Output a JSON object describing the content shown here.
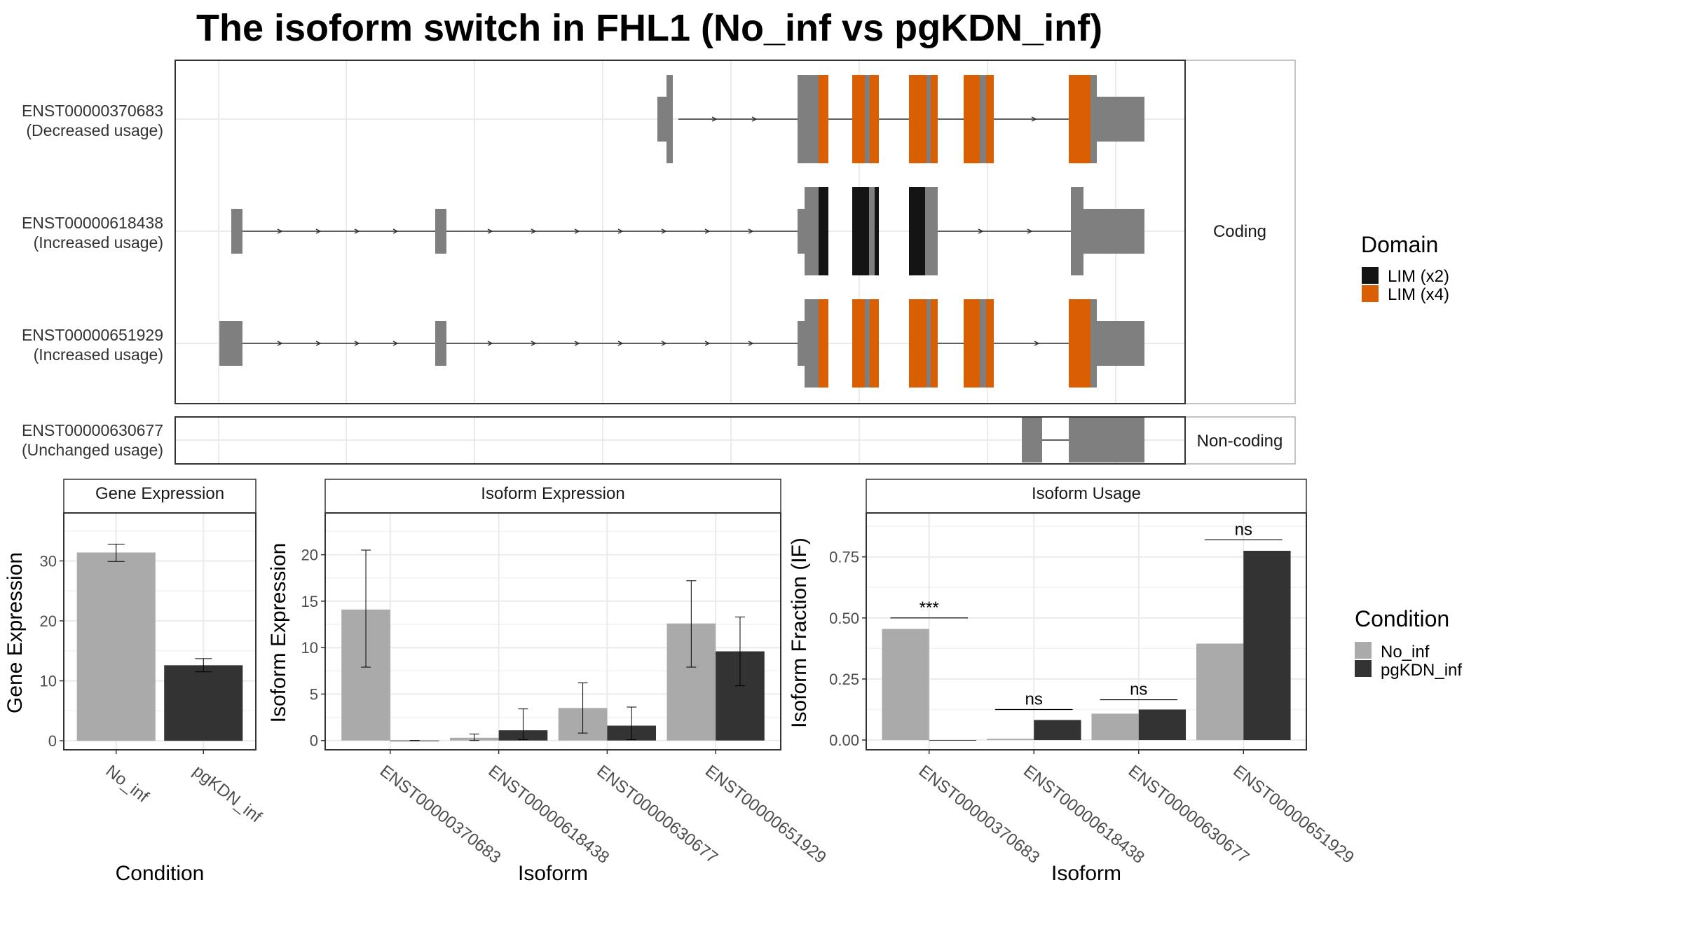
{
  "title": "The isoform switch in FHL1 (No_inf vs pgKDN_inf)",
  "colors": {
    "exon_gray": "#7f7f7f",
    "lim_x2": "#141414",
    "lim_x4": "#d95f02",
    "no_inf": "#aaaaaa",
    "pgkdn_inf": "#333333",
    "grid": "#ebebeb",
    "strip_fill": "#ffffff",
    "panel_border": "#333333"
  },
  "structure": {
    "strips": {
      "coding": "Coding",
      "noncoding": "Non-coding"
    },
    "legend": {
      "title": "Domain",
      "items": [
        {
          "label": "LIM (x2)",
          "color": "#141414"
        },
        {
          "label": "LIM (x4)",
          "color": "#d95f02"
        }
      ]
    },
    "coding_isoforms": [
      {
        "id": "ENST00000370683",
        "usage": "(Decreased usage)"
      },
      {
        "id": "ENST00000618438",
        "usage": "(Increased usage)"
      },
      {
        "id": "ENST00000651929",
        "usage": "(Increased usage)"
      }
    ],
    "noncoding_isoforms": [
      {
        "id": "ENST00000630677",
        "usage": "(Unchanged usage)"
      }
    ]
  },
  "condition_legend": {
    "title": "Condition",
    "items": [
      {
        "label": "No_inf",
        "color": "#aaaaaa"
      },
      {
        "label": "pgKDN_inf",
        "color": "#333333"
      }
    ]
  },
  "chart_data": [
    {
      "type": "bar",
      "strip": "Gene Expression",
      "xlabel": "Condition",
      "ylabel": "Gene Expression",
      "ylim": [
        -1.5,
        38
      ],
      "yticks": [
        0,
        10,
        20,
        30
      ],
      "categories": [
        "No_inf",
        "pgKDN_inf"
      ],
      "values": [
        31.4,
        12.6
      ],
      "errors": [
        [
          29.9,
          32.8
        ],
        [
          11.5,
          13.7
        ]
      ],
      "colors": [
        "#aaaaaa",
        "#333333"
      ]
    },
    {
      "type": "bar",
      "strip": "Isoform Expression",
      "xlabel": "Isoform",
      "ylabel": "Isoform Expression",
      "ylim": [
        -1,
        24.5
      ],
      "yticks": [
        0,
        5,
        10,
        15,
        20
      ],
      "categories": [
        "ENST00000370683",
        "ENST00000618438",
        "ENST00000630677",
        "ENST00000651929"
      ],
      "series": [
        {
          "name": "No_inf",
          "values": [
            14.1,
            0.3,
            3.5,
            12.6
          ],
          "errors": [
            [
              7.9,
              20.5
            ],
            [
              0.0,
              0.7
            ],
            [
              0.8,
              6.2
            ],
            [
              7.9,
              17.2
            ]
          ]
        },
        {
          "name": "pgKDN_inf",
          "values": [
            0.0,
            1.1,
            1.6,
            9.6
          ],
          "errors": [
            [
              0.0,
              0.0
            ],
            [
              0.1,
              3.4
            ],
            [
              0.1,
              3.6
            ],
            [
              5.9,
              13.3
            ]
          ]
        }
      ]
    },
    {
      "type": "bar",
      "strip": "Isoform Usage",
      "xlabel": "Isoform",
      "ylabel": "Isoform Fraction (IF)",
      "ylim": [
        -0.04,
        0.93
      ],
      "yticks": [
        "0.00",
        "0.25",
        "0.50",
        "0.75"
      ],
      "categories": [
        "ENST00000370683",
        "ENST00000618438",
        "ENST00000630677",
        "ENST00000651929"
      ],
      "series": [
        {
          "name": "No_inf",
          "values": [
            0.455,
            0.005,
            0.108,
            0.395
          ]
        },
        {
          "name": "pgKDN_inf",
          "values": [
            0.0,
            0.082,
            0.125,
            0.775
          ]
        }
      ],
      "annotations": [
        {
          "category": "ENST00000370683",
          "label": "***",
          "y": 0.5
        },
        {
          "category": "ENST00000618438",
          "label": "ns",
          "y": 0.125
        },
        {
          "category": "ENST00000630677",
          "label": "ns",
          "y": 0.165
        },
        {
          "category": "ENST00000651929",
          "label": "ns",
          "y": 0.82
        }
      ]
    }
  ]
}
